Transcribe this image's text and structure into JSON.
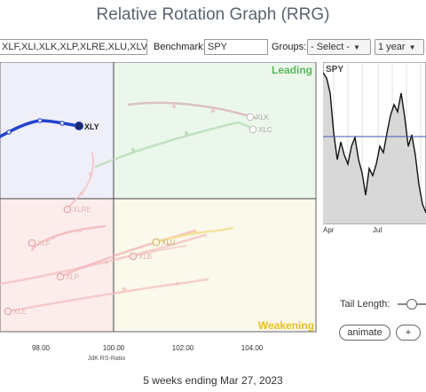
{
  "title": "Relative Rotation Graph (RRG)",
  "toolbar": {
    "symbols_value": "XLF,XLI,XLK,XLP,XLRE,XLU,XLV,XL",
    "benchmark_label": "Benchmark:",
    "benchmark_value": "SPY",
    "groups_label": "Groups:",
    "groups_value": "- Select -",
    "period_value": "1 year"
  },
  "rrg": {
    "quadrants": {
      "leading": "Leading",
      "weakening": "Weakening"
    },
    "x_ticks": [
      "98.00",
      "100.00",
      "102.00",
      "104.00"
    ],
    "xlabel": "JdK RS-Ratio",
    "colors": {
      "leading_bg": "#ecf7ec",
      "weakening_bg": "#fbf8ec",
      "lagging_bg": "#fcecec",
      "improving_bg": "#efeff9",
      "leading_text": "#5cb85c",
      "weakening_text": "#e8c020",
      "xly_tail": "#2244cc"
    },
    "labels": {
      "xly": "XLY",
      "xlk": "XLK",
      "xlc": "XLC",
      "xlre": "XLRE",
      "xlf": "XLF",
      "xlp": "XLP",
      "xlu": "XLU",
      "xlb": "XLB",
      "xle": "XLE"
    }
  },
  "spy": {
    "label": "SPY",
    "x_ticks": [
      "Apr",
      "Jul"
    ]
  },
  "controls": {
    "tail_length_label": "Tail Length:",
    "animate_label": "animate",
    "plus_label": "+"
  },
  "footer": "5 weeks ending Mar 27, 2023"
}
